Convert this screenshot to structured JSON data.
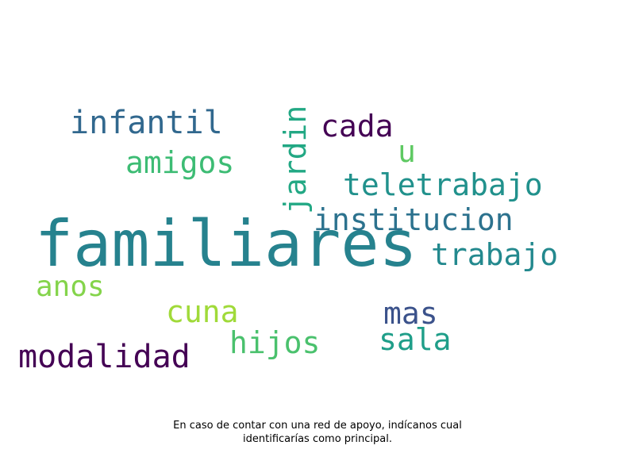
{
  "words": {
    "familiares": {
      "text": "familiares",
      "color": "#26828e"
    },
    "institucion": {
      "text": "institucion",
      "color": "#2c728e"
    },
    "teletrabajo": {
      "text": "teletrabajo",
      "color": "#21918c"
    },
    "trabajo": {
      "text": "trabajo",
      "color": "#23898e"
    },
    "infantil": {
      "text": "infantil",
      "color": "#31688e"
    },
    "amigos": {
      "text": "amigos",
      "color": "#3dbc74"
    },
    "cada": {
      "text": "cada",
      "color": "#440154"
    },
    "u": {
      "text": "u",
      "color": "#5ec962"
    },
    "jardin": {
      "text": "jardin",
      "color": "#22a884"
    },
    "anos": {
      "text": "anos",
      "color": "#84d44b"
    },
    "cuna": {
      "text": "cuna",
      "color": "#a0da39"
    },
    "hijos": {
      "text": "hijos",
      "color": "#4ac16d"
    },
    "mas": {
      "text": "mas",
      "color": "#3b528b"
    },
    "sala": {
      "text": "sala",
      "color": "#1f9e89"
    },
    "modalidad": {
      "text": "modalidad",
      "color": "#440154"
    }
  },
  "caption": {
    "line1": "En caso de contar con una red de apoyo, indícanos cual",
    "line2": "identificarías como principal."
  }
}
